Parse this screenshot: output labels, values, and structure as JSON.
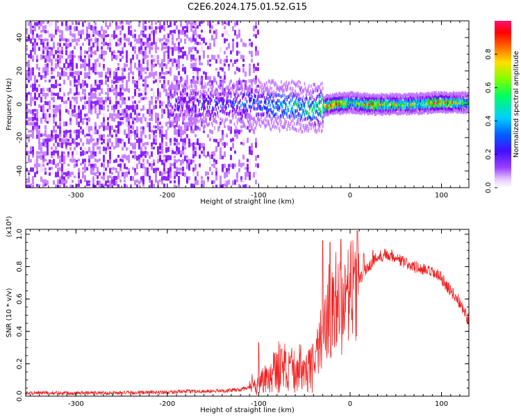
{
  "title": "C2E6.2024.175.01.52.G15",
  "colors": {
    "snr_line": "#ee2222",
    "spectrogram_base": "#6a1fd6",
    "colormap": [
      "#f0d8ff",
      "#c070ff",
      "#7a00ff",
      "#2a1cff",
      "#008cff",
      "#00e0e0",
      "#00e000",
      "#d0e000",
      "#ff8000",
      "#ff0000",
      "#ff0080"
    ]
  },
  "chart_data": [
    {
      "type": "heatmap",
      "title": "C2E6.2024.175.01.52.G15",
      "xlabel": "Height of straight line (km)",
      "ylabel": "Frequency (Hz)",
      "xlim": [
        -355,
        130
      ],
      "ylim": [
        -50,
        50
      ],
      "x_ticks": [
        -300,
        -200,
        -100,
        0,
        100
      ],
      "y_ticks": [
        -40,
        -20,
        0,
        20,
        40
      ],
      "colorbar": {
        "label": "Normalized spectral amplitude",
        "range": [
          0.0,
          1.0
        ],
        "ticks": [
          "0.0",
          "0.2",
          "0.4",
          "0.6",
          "0.8"
        ]
      },
      "noise_region_x": [
        -355,
        -100
      ],
      "signal_center_hz": [
        [
          -180,
          0
        ],
        [
          -140,
          0
        ],
        [
          -100,
          0
        ],
        [
          -80,
          -1
        ],
        [
          -60,
          -1
        ],
        [
          -45,
          -3
        ],
        [
          -35,
          -2
        ],
        [
          -20,
          0
        ],
        [
          0,
          1
        ],
        [
          20,
          0
        ],
        [
          60,
          0
        ],
        [
          95,
          1
        ],
        [
          130,
          1
        ]
      ],
      "signal_peak_amplitude": [
        [
          -180,
          0.3
        ],
        [
          -140,
          0.35
        ],
        [
          -100,
          0.4
        ],
        [
          -80,
          0.5
        ],
        [
          -60,
          0.55
        ],
        [
          -45,
          0.6
        ],
        [
          -20,
          0.9
        ],
        [
          -10,
          0.95
        ],
        [
          0,
          0.6
        ],
        [
          20,
          0.9
        ],
        [
          40,
          0.75
        ],
        [
          80,
          0.7
        ],
        [
          95,
          0.95
        ],
        [
          130,
          0.6
        ]
      ],
      "grid": false
    },
    {
      "type": "line",
      "xlabel": "Height of straight line (km)",
      "ylabel": "SNR (10 * v/v)",
      "y_multiplier": "(x10⁴)",
      "xlim": [
        -355,
        130
      ],
      "ylim": [
        0,
        1.03
      ],
      "x_ticks": [
        -300,
        -200,
        -100,
        0,
        100
      ],
      "y_ticks": [
        0.0,
        0.2,
        0.4,
        0.6,
        0.8,
        1.0
      ],
      "series": [
        {
          "values_envelope": [
            [
              -355,
              0.02
            ],
            [
              -300,
              0.02
            ],
            [
              -250,
              0.02
            ],
            [
              -200,
              0.025
            ],
            [
              -170,
              0.03
            ],
            [
              -150,
              0.03
            ],
            [
              -120,
              0.04
            ],
            [
              -105,
              0.06
            ],
            [
              -95,
              0.1
            ],
            [
              -80,
              0.18
            ],
            [
              -70,
              0.17
            ],
            [
              -60,
              0.15
            ],
            [
              -50,
              0.12
            ],
            [
              -40,
              0.2
            ],
            [
              -30,
              0.4
            ],
            [
              -20,
              0.5
            ],
            [
              -10,
              0.55
            ],
            [
              0,
              0.62
            ],
            [
              10,
              0.72
            ],
            [
              20,
              0.8
            ],
            [
              30,
              0.86
            ],
            [
              40,
              0.88
            ],
            [
              50,
              0.86
            ],
            [
              60,
              0.82
            ],
            [
              70,
              0.8
            ],
            [
              80,
              0.78
            ],
            [
              90,
              0.76
            ],
            [
              100,
              0.73
            ],
            [
              110,
              0.65
            ],
            [
              120,
              0.58
            ],
            [
              130,
              0.47
            ]
          ],
          "spike_peaks": [
            [
              -100,
              0.33
            ],
            [
              -75,
              0.29
            ],
            [
              -30,
              0.96
            ],
            [
              -22,
              0.95
            ],
            [
              -10,
              0.97
            ],
            [
              8,
              1.02
            ],
            [
              15,
              0.88
            ],
            [
              25,
              0.9
            ]
          ]
        }
      ],
      "grid": false
    }
  ]
}
